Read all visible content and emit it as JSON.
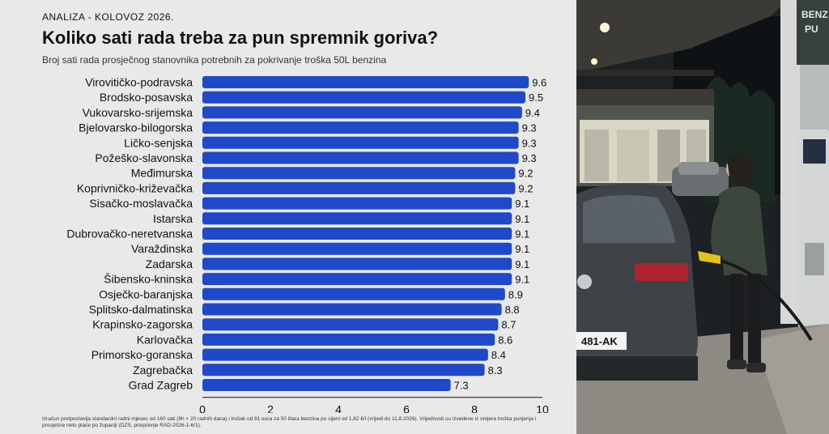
{
  "header": {
    "kicker": "ANALIZA - KOLOVOZ 2026.",
    "title": "Koliko sati rada treba za pun spremnik goriva?",
    "subtitle": "Broj sati rada prosječnog stanovnika potrebnih za pokrivanje troška 50L benzina"
  },
  "footnote": "Izračun pretpostavlja standardni radni mjesec od 160 sati (8h × 20 radnih dana) i trošak od 81 eura za 50 litara benzina po cijeni od 1,62 €/l (vrijedi do 11.8.2026). Vrijednosti su izvedene iz omjera troška punjenja i prosječne neto plaće po županiji (DZS, priopćenje RAD-2026-1-6/1).",
  "photo": {
    "plate": "481-AK",
    "pump_sign": "BENZ PU"
  },
  "chart_data": {
    "type": "bar",
    "orientation": "horizontal",
    "title": "Koliko sati rada treba za pun spremnik goriva?",
    "bar_color": "#1f49c8",
    "xlim": [
      0,
      10
    ],
    "xticks": [
      0,
      2,
      4,
      6,
      8,
      10
    ],
    "grid": false,
    "categories": [
      "Virovitičko-podravska",
      "Brodsko-posavska",
      "Vukovarsko-srijemska",
      "Bjelovarsko-bilogorska",
      "Ličko-senjska",
      "Požeško-slavonska",
      "Međimurska",
      "Koprivničko-križevačka",
      "Sisačko-moslavačka",
      "Istarska",
      "Dubrovačko-neretvanska",
      "Varaždinska",
      "Zadarska",
      "Šibensko-kninska",
      "Osječko-baranjska",
      "Splitsko-dalmatinska",
      "Krapinsko-zagorska",
      "Karlovačka",
      "Primorsko-goranska",
      "Zagrebačka",
      "Grad Zagreb"
    ],
    "values": [
      9.6,
      9.5,
      9.4,
      9.3,
      9.3,
      9.3,
      9.2,
      9.2,
      9.1,
      9.1,
      9.1,
      9.1,
      9.1,
      9.1,
      8.9,
      8.8,
      8.7,
      8.6,
      8.4,
      8.3,
      7.3
    ],
    "value_labels": [
      "9.6",
      "9.5",
      "9.4",
      "9.3",
      "9.3",
      "9.3",
      "9.2",
      "9.2",
      "9.1",
      "9.1",
      "9.1",
      "9.1",
      "9.1",
      "9.1",
      "8.9",
      "8.8",
      "8.7",
      "8.6",
      "8.4",
      "8.3",
      "7.3"
    ]
  }
}
